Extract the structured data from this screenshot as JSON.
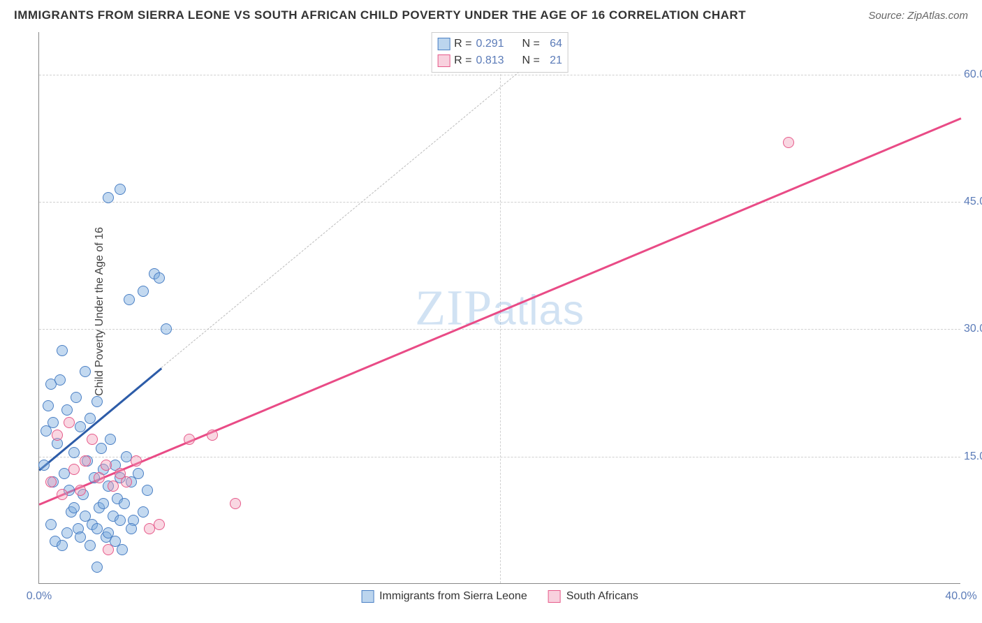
{
  "header": {
    "title": "IMMIGRANTS FROM SIERRA LEONE VS SOUTH AFRICAN CHILD POVERTY UNDER THE AGE OF 16 CORRELATION CHART",
    "source_label": "Source: ",
    "source_value": "ZipAtlas.com"
  },
  "chart": {
    "type": "scatter",
    "ylabel": "Child Poverty Under the Age of 16",
    "watermark_zip": "ZIP",
    "watermark_atlas": "atlas",
    "xlim": [
      0,
      40
    ],
    "ylim": [
      0,
      65
    ],
    "x_ticks": [
      0,
      20,
      40
    ],
    "x_tick_labels": [
      "0.0%",
      "",
      "40.0%"
    ],
    "y_ticks": [
      15,
      30,
      45,
      60
    ],
    "y_tick_labels": [
      "15.0%",
      "30.0%",
      "45.0%",
      "60.0%"
    ],
    "grid_color": "#d0d0d0",
    "background_color": "#ffffff",
    "axis_color": "#888888",
    "tick_font_color": "#5b7bb8",
    "series": {
      "blue": {
        "label": "Immigrants from Sierra Leone",
        "fill_color": "rgba(122,171,222,0.45)",
        "stroke_color": "#4a7fc4",
        "line_color": "#2d5ca8",
        "R": "0.291",
        "N": "64",
        "trend_solid": {
          "x1": 0.0,
          "y1": 13.5,
          "x2": 5.3,
          "y2": 25.5
        },
        "trend_dashed": {
          "x1": 5.3,
          "y1": 25.5,
          "x2": 22.0,
          "y2": 63.0
        },
        "points": [
          [
            0.2,
            14.0
          ],
          [
            0.3,
            18.0
          ],
          [
            0.4,
            21.0
          ],
          [
            0.5,
            23.5
          ],
          [
            0.6,
            19.0
          ],
          [
            0.6,
            12.0
          ],
          [
            0.8,
            16.5
          ],
          [
            0.9,
            24.0
          ],
          [
            1.0,
            27.5
          ],
          [
            1.1,
            13.0
          ],
          [
            1.2,
            20.5
          ],
          [
            1.3,
            11.0
          ],
          [
            1.4,
            8.5
          ],
          [
            1.5,
            15.5
          ],
          [
            1.6,
            22.0
          ],
          [
            1.7,
            6.5
          ],
          [
            1.8,
            18.5
          ],
          [
            1.9,
            10.5
          ],
          [
            2.0,
            25.0
          ],
          [
            2.1,
            14.5
          ],
          [
            2.2,
            19.5
          ],
          [
            2.3,
            7.0
          ],
          [
            2.4,
            12.5
          ],
          [
            2.5,
            21.5
          ],
          [
            2.6,
            9.0
          ],
          [
            2.7,
            16.0
          ],
          [
            2.8,
            13.5
          ],
          [
            2.9,
            5.5
          ],
          [
            3.0,
            11.5
          ],
          [
            3.1,
            17.0
          ],
          [
            3.2,
            8.0
          ],
          [
            3.3,
            14.0
          ],
          [
            3.4,
            10.0
          ],
          [
            3.5,
            12.5
          ],
          [
            3.6,
            4.0
          ],
          [
            3.7,
            9.5
          ],
          [
            3.8,
            15.0
          ],
          [
            3.9,
            33.5
          ],
          [
            4.0,
            12.0
          ],
          [
            4.1,
            7.5
          ],
          [
            4.3,
            13.0
          ],
          [
            4.5,
            34.5
          ],
          [
            4.7,
            11.0
          ],
          [
            5.0,
            36.5
          ],
          [
            5.2,
            36.0
          ],
          [
            5.5,
            30.0
          ],
          [
            2.5,
            2.0
          ],
          [
            3.0,
            45.5
          ],
          [
            3.5,
            46.5
          ],
          [
            0.5,
            7.0
          ],
          [
            0.7,
            5.0
          ],
          [
            1.0,
            4.5
          ],
          [
            1.2,
            6.0
          ],
          [
            1.5,
            9.0
          ],
          [
            1.8,
            5.5
          ],
          [
            2.0,
            8.0
          ],
          [
            2.2,
            4.5
          ],
          [
            2.5,
            6.5
          ],
          [
            2.8,
            9.5
          ],
          [
            3.0,
            6.0
          ],
          [
            3.3,
            5.0
          ],
          [
            3.5,
            7.5
          ],
          [
            4.0,
            6.5
          ],
          [
            4.5,
            8.5
          ]
        ]
      },
      "pink": {
        "label": "South Africans",
        "fill_color": "rgba(239,154,182,0.40)",
        "stroke_color": "#e65a8a",
        "line_color": "#e94b86",
        "R": "0.813",
        "N": "21",
        "trend_solid": {
          "x1": 0.0,
          "y1": 9.5,
          "x2": 40.0,
          "y2": 55.0
        },
        "points": [
          [
            0.5,
            12.0
          ],
          [
            0.8,
            17.5
          ],
          [
            1.0,
            10.5
          ],
          [
            1.3,
            19.0
          ],
          [
            1.5,
            13.5
          ],
          [
            1.8,
            11.0
          ],
          [
            2.0,
            14.5
          ],
          [
            2.3,
            17.0
          ],
          [
            2.6,
            12.5
          ],
          [
            2.9,
            14.0
          ],
          [
            3.2,
            11.5
          ],
          [
            3.5,
            13.0
          ],
          [
            3.8,
            12.0
          ],
          [
            4.2,
            14.5
          ],
          [
            4.8,
            6.5
          ],
          [
            5.2,
            7.0
          ],
          [
            6.5,
            17.0
          ],
          [
            7.5,
            17.5
          ],
          [
            8.5,
            9.5
          ],
          [
            3.0,
            4.0
          ],
          [
            32.5,
            52.0
          ]
        ]
      }
    },
    "top_legend_labels": {
      "R": "R = ",
      "N": "N = "
    },
    "bottom_legend_labels": [
      "Immigrants from Sierra Leone",
      "South Africans"
    ]
  }
}
